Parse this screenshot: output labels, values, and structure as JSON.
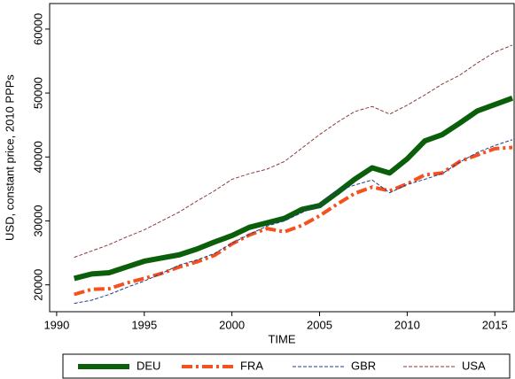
{
  "chart_data": {
    "type": "line",
    "y_label": "USD, constant price, 2010 PPPs",
    "x_label": "TIME",
    "x": [
      1991,
      1992,
      1993,
      1994,
      1995,
      1996,
      1997,
      1998,
      1999,
      2000,
      2001,
      2002,
      2003,
      2004,
      2005,
      2006,
      2007,
      2008,
      2009,
      2010,
      2011,
      2012,
      2013,
      2014,
      2015,
      2016
    ],
    "series": [
      {
        "name": "DEU",
        "color": "#0b5f0b",
        "values": [
          21000,
          21700,
          21900,
          22800,
          23700,
          24200,
          24700,
          25600,
          26700,
          27700,
          29000,
          29700,
          30400,
          31800,
          32400,
          34400,
          36500,
          38300,
          37500,
          39700,
          42500,
          43500,
          45300,
          47200,
          48200,
          49200
        ]
      },
      {
        "name": "FRA",
        "color": "#f4511e",
        "values": [
          18500,
          19300,
          19400,
          20300,
          21000,
          21800,
          22800,
          23600,
          24600,
          26400,
          27800,
          28800,
          28300,
          29300,
          30800,
          32600,
          34300,
          35300,
          34700,
          35800,
          37200,
          37500,
          39300,
          40300,
          41300,
          41500
        ]
      },
      {
        "name": "GBR",
        "color": "#1c3f8f",
        "values": [
          17100,
          17600,
          18500,
          19600,
          20600,
          21800,
          23100,
          23900,
          24900,
          26500,
          27900,
          29200,
          30000,
          31300,
          32500,
          34700,
          35600,
          36400,
          34400,
          35700,
          36500,
          37400,
          39200,
          40700,
          41800,
          42700
        ]
      },
      {
        "name": "USA",
        "color": "#8b3a3a",
        "values": [
          24300,
          25300,
          26300,
          27500,
          28600,
          30000,
          31400,
          33100,
          34700,
          36500,
          37400,
          38100,
          39300,
          41400,
          43500,
          45400,
          47100,
          47900,
          46700,
          48100,
          49700,
          51400,
          52800,
          54700,
          56400,
          57500
        ]
      }
    ],
    "xlim": [
      1989.6,
      2016.1
    ],
    "xticks": [
      1990,
      1995,
      2000,
      2005,
      2010,
      2015
    ],
    "ylim": [
      15800,
      64000
    ],
    "yticks": [
      20000,
      30000,
      40000,
      50000,
      60000
    ],
    "legend": "bottom"
  }
}
